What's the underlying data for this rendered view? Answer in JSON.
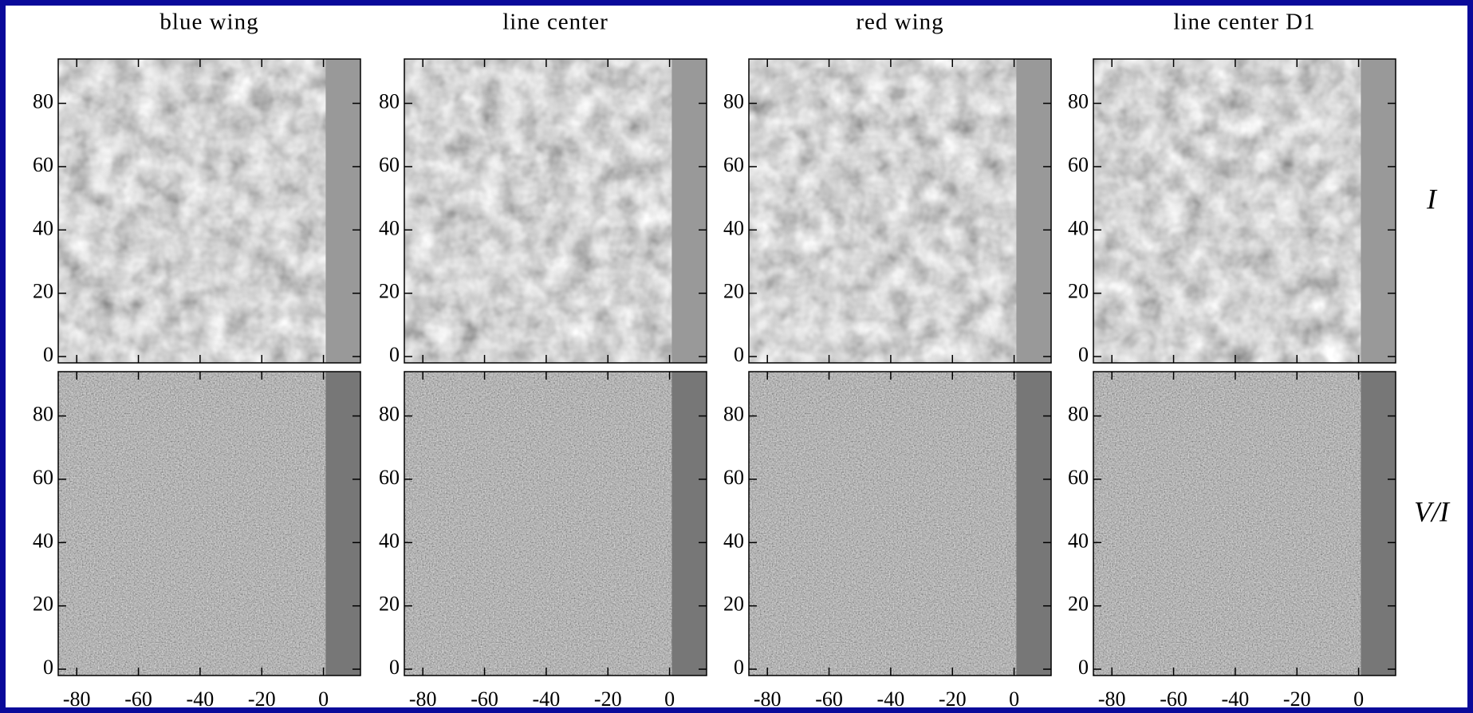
{
  "panels": {
    "columns": [
      "blue wing",
      "line center",
      "red wing",
      "line center D1"
    ],
    "rows": [
      "I",
      "V/I"
    ],
    "xlim": [
      -86,
      12
    ],
    "ylim": [
      -2,
      94
    ],
    "xticks": [
      -80,
      -60,
      -40,
      -20,
      0
    ],
    "yticks": [
      0,
      20,
      40,
      60,
      80
    ]
  }
}
